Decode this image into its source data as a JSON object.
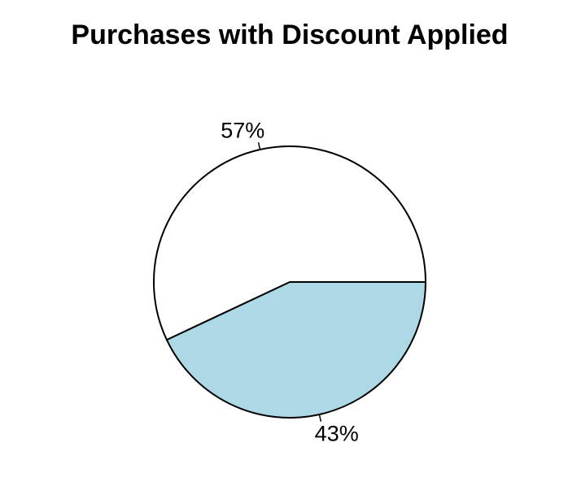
{
  "chart_data": {
    "type": "pie",
    "title": "Purchases with Discount Applied",
    "slices": [
      {
        "value": 43,
        "label": "43%",
        "color": "#add8e6"
      },
      {
        "value": 57,
        "label": "57%",
        "color": "#ffffff"
      }
    ],
    "start_angle_deg": 0,
    "direction": "clockwise",
    "outline_color": "#000000"
  }
}
